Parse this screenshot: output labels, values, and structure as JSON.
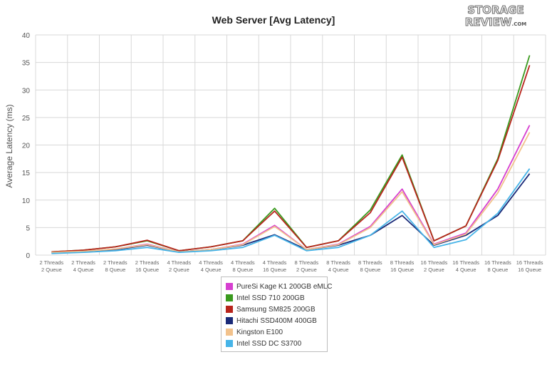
{
  "chart_data": {
    "type": "line",
    "title": "Web Server [Avg Latency]",
    "ylabel": "Average Latency (ms)",
    "xlabel": "",
    "ylim": [
      0,
      40
    ],
    "yticks": [
      0,
      5,
      10,
      15,
      20,
      25,
      30,
      35,
      40
    ],
    "grid": true,
    "legend_position": "bottom-center",
    "categories": [
      [
        "2 Threads",
        "2 Queue"
      ],
      [
        "2 Threads",
        "4 Queue"
      ],
      [
        "2 Threads",
        "8 Queue"
      ],
      [
        "2 Threads",
        "16 Queue"
      ],
      [
        "4 Threads",
        "2 Queue"
      ],
      [
        "4 Threads",
        "4 Queue"
      ],
      [
        "4 Threads",
        "8 Queue"
      ],
      [
        "4 Threads",
        "16 Queue"
      ],
      [
        "8 Threads",
        "2 Queue"
      ],
      [
        "8 Threads",
        "4 Queue"
      ],
      [
        "8 Threads",
        "8 Queue"
      ],
      [
        "8 Threads",
        "16 Queue"
      ],
      [
        "16 Threads",
        "2 Queue"
      ],
      [
        "16 Threads",
        "4 Queue"
      ],
      [
        "16 Threads",
        "8 Queue"
      ],
      [
        "16 Threads",
        "16 Queue"
      ]
    ],
    "series": [
      {
        "name": "PureSi Kage K1 200GB eMLC",
        "color": "#d63fd0",
        "values": [
          0.5,
          0.7,
          1.1,
          2.0,
          0.6,
          1.0,
          2.0,
          5.4,
          1.0,
          2.0,
          5.2,
          12.0,
          2.0,
          4.0,
          12.0,
          23.6
        ]
      },
      {
        "name": "Intel SSD 710 200GB",
        "color": "#3a9a1e",
        "values": [
          0.6,
          0.9,
          1.5,
          2.6,
          0.8,
          1.5,
          2.6,
          8.5,
          1.4,
          2.6,
          8.2,
          18.2,
          2.6,
          5.3,
          17.5,
          36.3
        ]
      },
      {
        "name": "Samsung SM825 200GB",
        "color": "#b8241c",
        "values": [
          0.6,
          0.9,
          1.5,
          2.7,
          0.8,
          1.5,
          2.6,
          8.0,
          1.4,
          2.6,
          7.7,
          17.8,
          2.6,
          5.3,
          17.2,
          34.5
        ]
      },
      {
        "name": "Hitachi SSD400M 400GB",
        "color": "#1a2a78",
        "values": [
          0.4,
          0.6,
          1.0,
          1.8,
          0.6,
          1.0,
          1.8,
          3.7,
          1.0,
          1.8,
          3.6,
          7.2,
          1.8,
          3.6,
          7.2,
          14.8
        ]
      },
      {
        "name": "Kingston E100",
        "color": "#f2c28c",
        "values": [
          0.5,
          0.7,
          1.1,
          1.9,
          0.6,
          1.0,
          1.9,
          5.2,
          1.0,
          1.9,
          5.0,
          11.5,
          1.9,
          3.8,
          11.3,
          22.3
        ]
      },
      {
        "name": "Intel SSD DC S3700",
        "color": "#46b4e8",
        "values": [
          0.3,
          0.5,
          0.8,
          1.4,
          0.5,
          0.8,
          1.4,
          3.6,
          0.8,
          1.4,
          3.6,
          8.0,
          1.4,
          2.8,
          7.6,
          15.7
        ]
      }
    ]
  },
  "logo": {
    "line1": "STORAGE",
    "line2": "REVIEW",
    "suffix": ".COM"
  }
}
